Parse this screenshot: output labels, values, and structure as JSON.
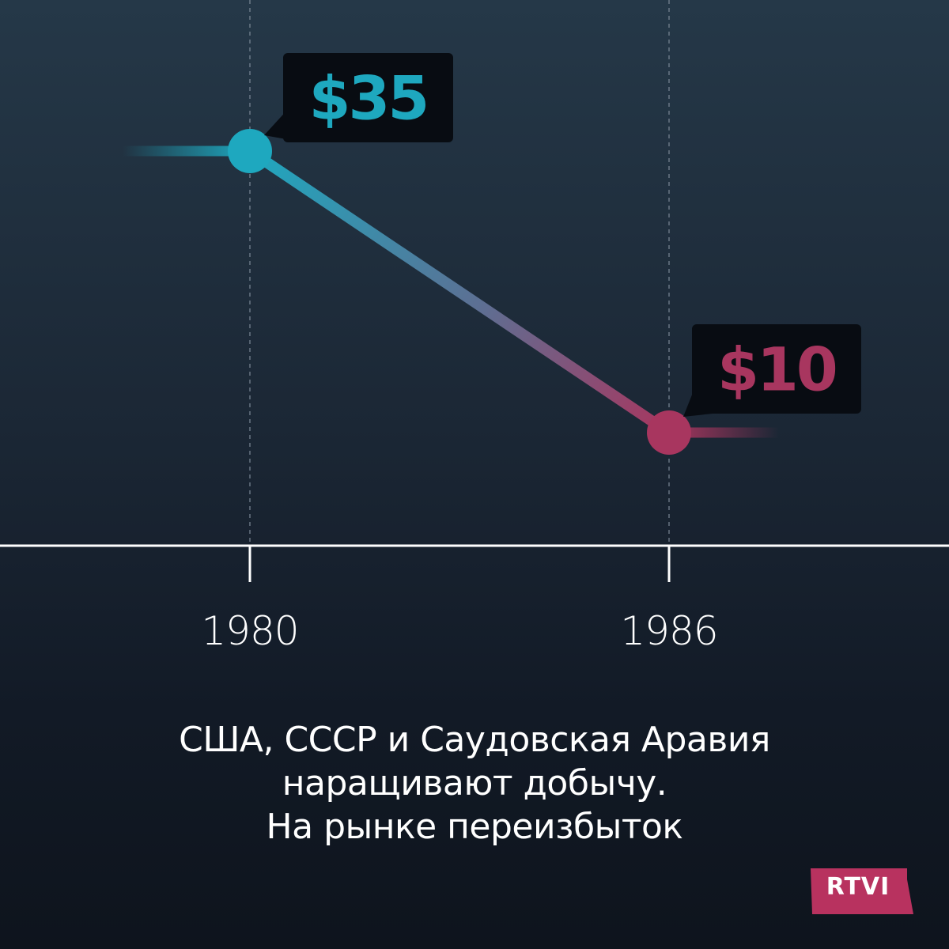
{
  "chart_data": {
    "type": "line",
    "x": [
      "1980",
      "1986"
    ],
    "values": [
      35,
      10
    ],
    "tick_labels": [
      "1980",
      "1986"
    ],
    "data_labels": [
      "$35",
      "$10"
    ],
    "colors": {
      "start": "#1ea8bf",
      "end": "#a8365f",
      "label_box": "#080c12",
      "axis": "#ffffff",
      "gridline": "#7c8896"
    },
    "grid": true
  },
  "caption": {
    "lines": [
      "США, СССР и Саудовская Аравия",
      "наращивают добычу.",
      "На рынке переизбыток"
    ]
  },
  "logo": {
    "text": "RTVI",
    "color": "#b8325f"
  }
}
